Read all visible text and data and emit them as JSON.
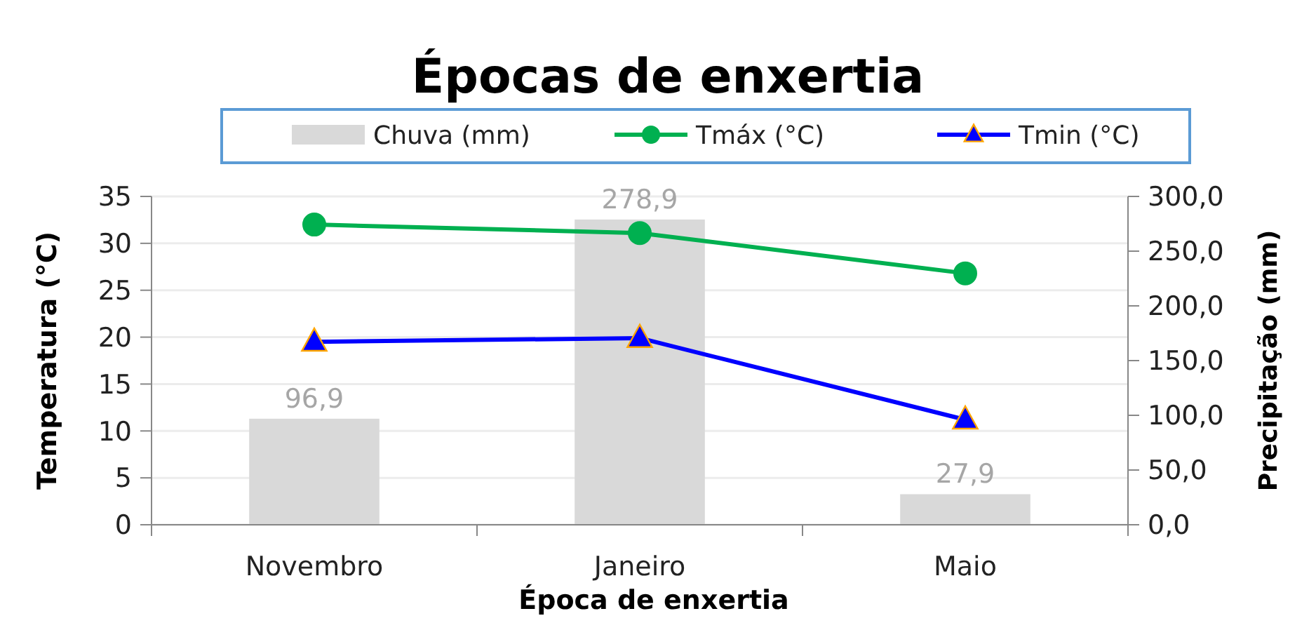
{
  "chart_data": {
    "type": "bar",
    "title": "Épocas de enxertia",
    "xlabel": "Época de enxertia",
    "ylabel": "Temperatura (°C)",
    "y2label": "Precipitação (mm)",
    "categories": [
      "Novembro",
      "Janeiro",
      "Maio"
    ],
    "series": [
      {
        "name": "Chuva (mm)",
        "axis": "y2",
        "color": "#d9d9d9",
        "values": [
          96.9,
          278.9,
          27.9
        ],
        "value_labels": [
          "96,9",
          "278,9",
          "27,9"
        ]
      },
      {
        "name": "Tmáx (°C)",
        "type": "line",
        "color": "#00b050",
        "marker": "circle",
        "values": [
          32.0,
          31.1,
          26.8
        ]
      },
      {
        "name": "Tmin (°C)",
        "type": "line",
        "color": "#0000ff",
        "marker": "triangle",
        "values": [
          19.5,
          19.9,
          11.2
        ]
      }
    ],
    "ylim": [
      0,
      35
    ],
    "yticks": [
      0,
      5,
      10,
      15,
      20,
      25,
      30,
      35
    ],
    "y2lim": [
      0,
      300
    ],
    "y2ticks": [
      {
        "value": 0,
        "label": "0,0"
      },
      {
        "value": 50,
        "label": "50,0"
      },
      {
        "value": 100,
        "label": "100,0"
      },
      {
        "value": 150,
        "label": "150,0"
      },
      {
        "value": 200,
        "label": "200,0"
      },
      {
        "value": 250,
        "label": "250,0"
      },
      {
        "value": 300,
        "label": "300,0"
      }
    ],
    "grid": "y",
    "legend": "top"
  }
}
